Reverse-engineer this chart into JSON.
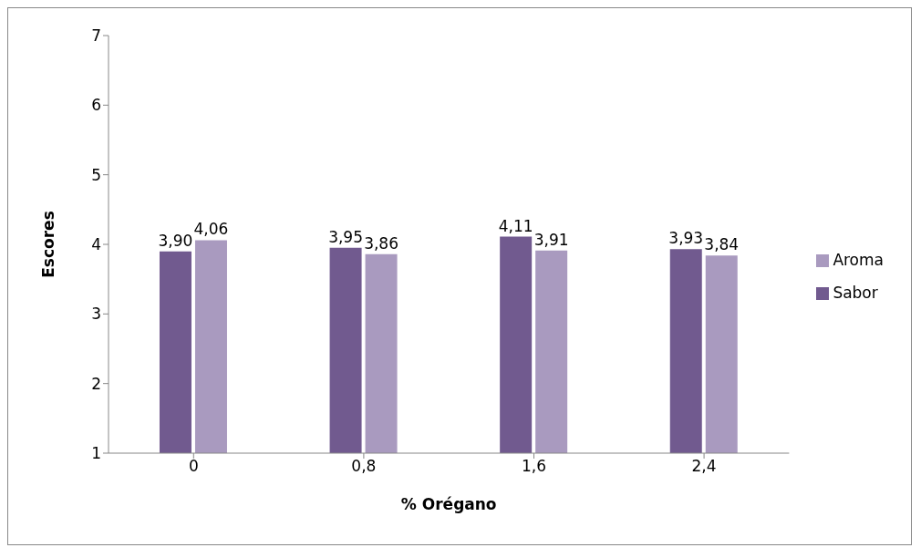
{
  "chart_data": {
    "type": "bar",
    "xlabel": "% Orégano",
    "ylabel": "Escores",
    "categories": [
      "0",
      "0,8",
      "1,6",
      "2,4"
    ],
    "series": [
      {
        "name": "Sabor",
        "color": "#715a8f",
        "values": [
          3.9,
          3.95,
          4.11,
          3.93
        ],
        "value_labels": [
          "3,90",
          "3,95",
          "4,11",
          "3,93"
        ]
      },
      {
        "name": "Aroma",
        "color": "#a99abf",
        "values": [
          4.06,
          3.86,
          3.91,
          3.84
        ],
        "value_labels": [
          "4,06",
          "3,86",
          "3,91",
          "3,84"
        ]
      }
    ],
    "ylim": [
      1,
      7
    ],
    "yticks": [
      1,
      2,
      3,
      4,
      5,
      6,
      7
    ],
    "grid": false,
    "legend": "right"
  }
}
